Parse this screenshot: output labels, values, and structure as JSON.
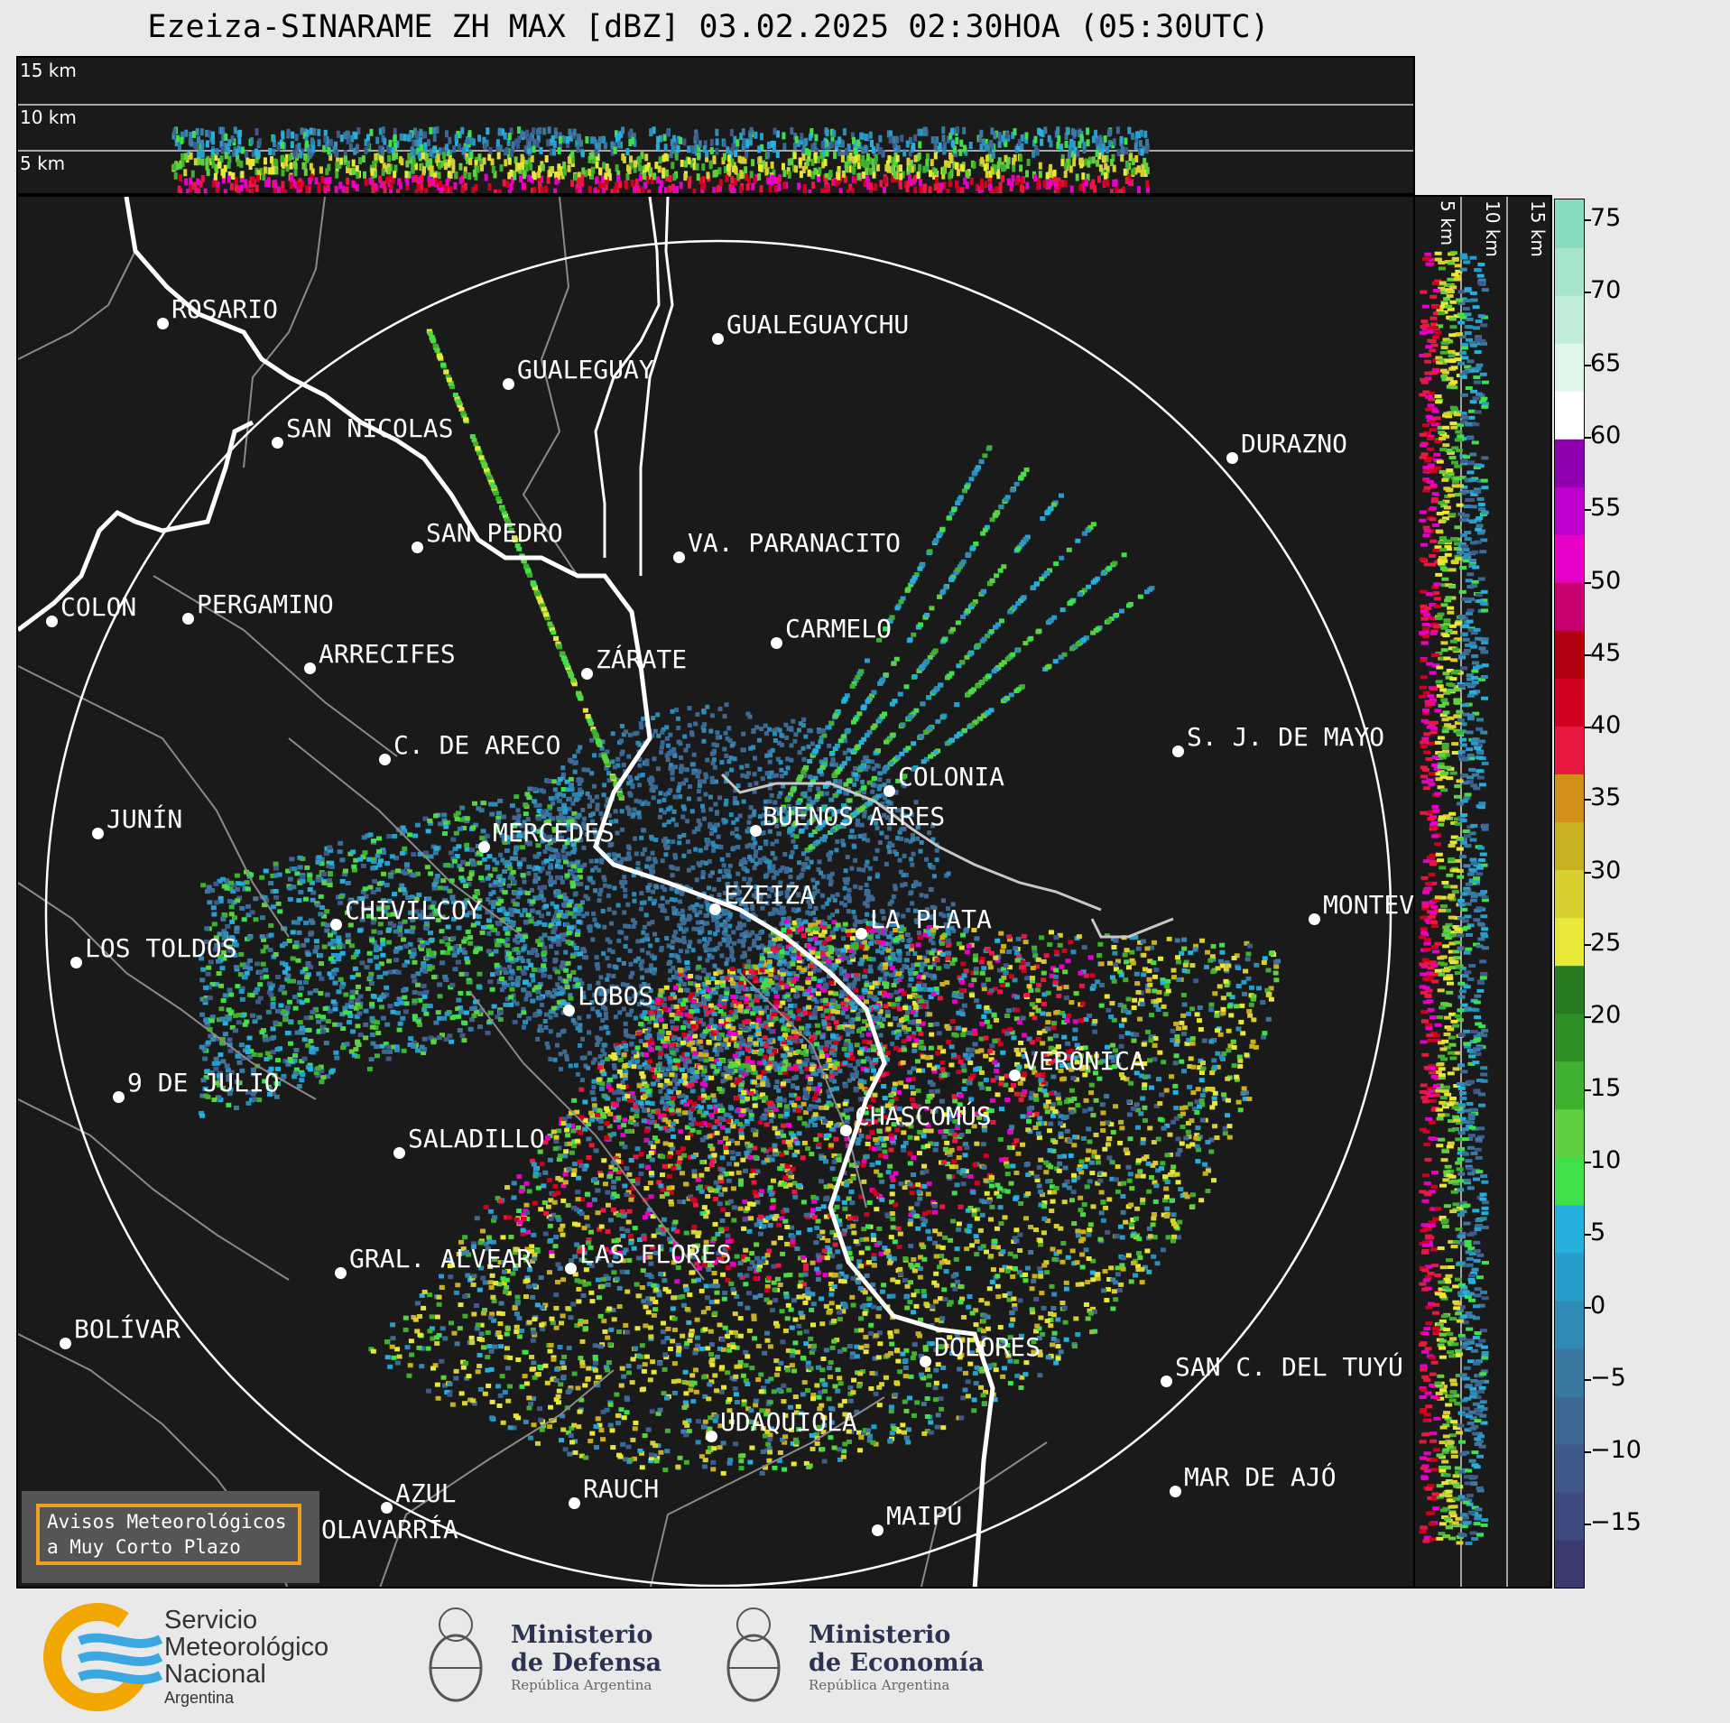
{
  "title": "Ezeiza-SINARAME ZH MAX [dBZ] 03.02.2025 02:30HOA (05:30UTC)",
  "top_section": {
    "labels": [
      "15 km",
      "10 km",
      "5 km"
    ]
  },
  "right_section": {
    "labels": [
      "5 km",
      "10 km",
      "15 km"
    ]
  },
  "colorbar": {
    "unit": "dBZ",
    "ticks": [
      "75",
      "70",
      "65",
      "60",
      "55",
      "50",
      "45",
      "40",
      "35",
      "30",
      "25",
      "20",
      "15",
      "10",
      "5",
      "0",
      "−5",
      "−10",
      "−15"
    ],
    "colors": [
      "#3b3a6e",
      "#3f4a80",
      "#3f5a8a",
      "#3d6a94",
      "#3a7aa0",
      "#2f8bb5",
      "#2a9ccc",
      "#25b0dd",
      "#3fe04a",
      "#5fd040",
      "#40b030",
      "#2f9028",
      "#2a7a22",
      "#e8e838",
      "#d8d030",
      "#c8b020",
      "#d09018",
      "#e81840",
      "#d00020",
      "#b00010",
      "#c80070",
      "#e800c8",
      "#c000d0",
      "#9000b0",
      "#ffffff",
      "#e0f5ea",
      "#c0ecd8",
      "#a8e6cc",
      "#88dcc0"
    ],
    "color_names": [
      "navy",
      "blue",
      "teal",
      "green",
      "yellow",
      "orange",
      "red",
      "magenta",
      "purple",
      "white",
      "mint"
    ]
  },
  "cities": [
    {
      "name": "ROSARIO"
    },
    {
      "name": "GUALEGUAYCHU"
    },
    {
      "name": "GUALEGUAY"
    },
    {
      "name": "SAN NICOLAS"
    },
    {
      "name": "DURAZNO"
    },
    {
      "name": "SAN PEDRO"
    },
    {
      "name": "VA. PARANACITO"
    },
    {
      "name": "COLON"
    },
    {
      "name": "PERGAMINO"
    },
    {
      "name": "CARMELO"
    },
    {
      "name": "ARRECIFES"
    },
    {
      "name": "ZÁRATE"
    },
    {
      "name": "S. J. DE MAYO"
    },
    {
      "name": "C. DE ARECO"
    },
    {
      "name": "COLONIA"
    },
    {
      "name": "JUNÍN"
    },
    {
      "name": "BUENOS AIRES"
    },
    {
      "name": "MERCEDES"
    },
    {
      "name": "MONTEV"
    },
    {
      "name": "EZEIZA"
    },
    {
      "name": "CHIVILCOY"
    },
    {
      "name": "LA PLATA"
    },
    {
      "name": "LOS TOLDOS"
    },
    {
      "name": "LOBOS"
    },
    {
      "name": "VERÓNICA"
    },
    {
      "name": "9 DE JULIO"
    },
    {
      "name": "CHASCOMÚS"
    },
    {
      "name": "SALADILLO"
    },
    {
      "name": "GRAL. ALVEAR"
    },
    {
      "name": "LAS FLORES"
    },
    {
      "name": "BOLÍVAR"
    },
    {
      "name": "DOLORES"
    },
    {
      "name": "SAN C. DEL TUYÚ"
    },
    {
      "name": "UDAQUIOLA"
    },
    {
      "name": "MAR DE AJÓ"
    },
    {
      "name": "AZUL"
    },
    {
      "name": "RAUCH"
    },
    {
      "name": "MAIPÚ"
    },
    {
      "name": "OLAVARRÍA"
    }
  ],
  "avisos": {
    "line1": "Avisos Meteorológicos",
    "line2": "a Muy Corto Plazo"
  },
  "footer": {
    "smn": {
      "line1": "Servicio",
      "line2": "Meteorológico",
      "line3": "Nacional",
      "line4": "Argentina"
    },
    "defensa": {
      "line1": "Ministerio",
      "line2": "de Defensa",
      "line3": "República Argentina"
    },
    "economia": {
      "line1": "Ministerio",
      "line2": "de Economía",
      "line3": "República Argentina"
    }
  }
}
